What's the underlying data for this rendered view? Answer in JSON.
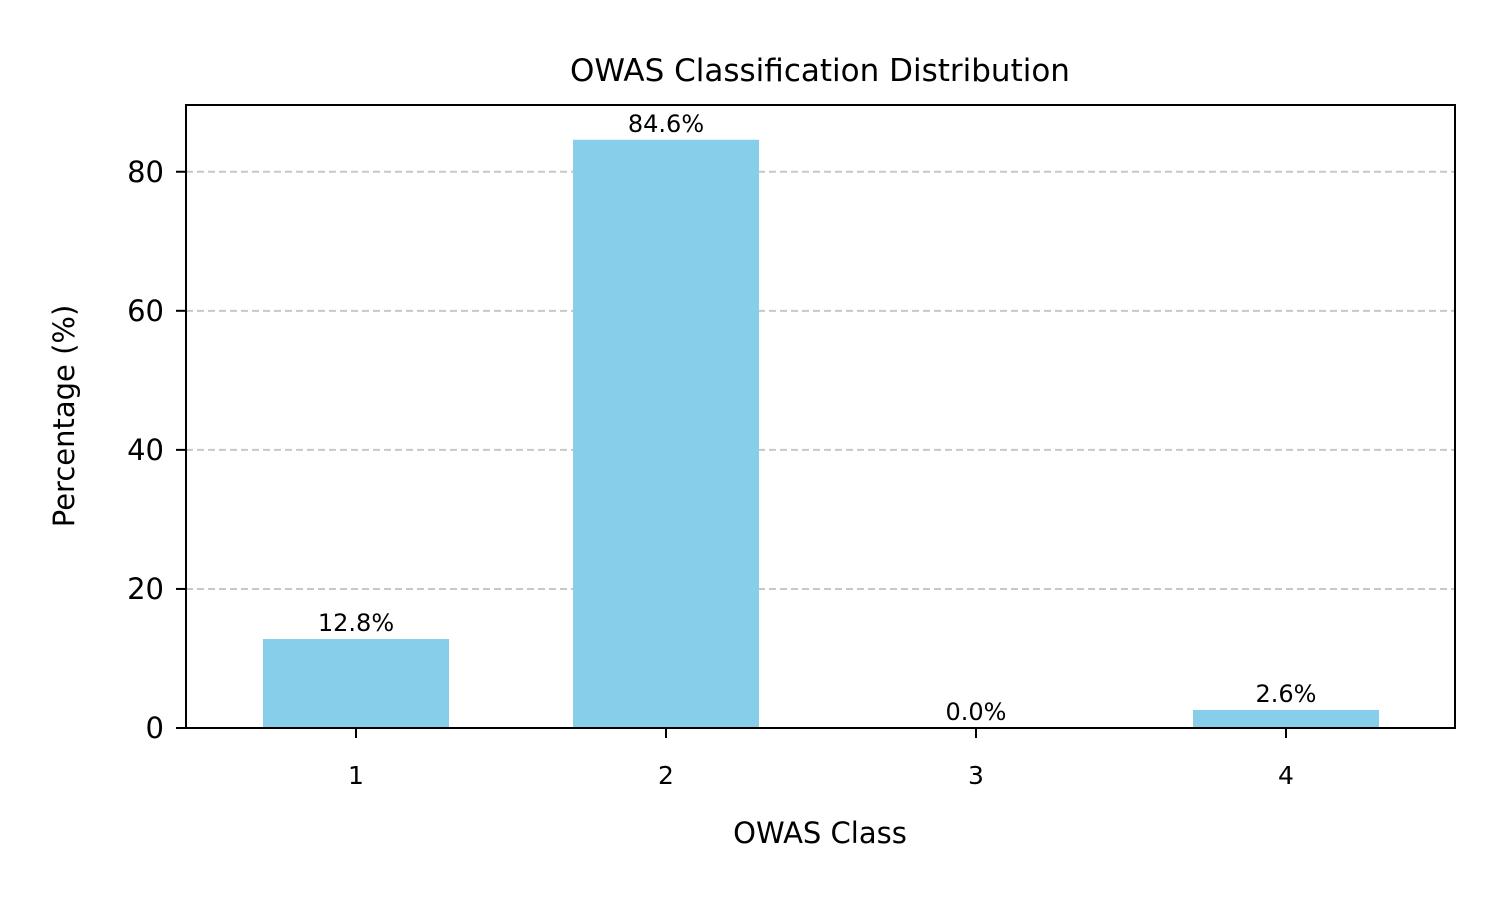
{
  "chart_data": {
    "type": "bar",
    "title": "OWAS Classification Distribution",
    "xlabel": "OWAS Class",
    "ylabel": "Percentage (%)",
    "categories": [
      "1",
      "2",
      "3",
      "4"
    ],
    "values": [
      12.8,
      84.6,
      0.0,
      2.6
    ],
    "value_labels": [
      "12.8%",
      "84.6%",
      "0.0%",
      "2.6%"
    ],
    "ylim": [
      0,
      89.6
    ],
    "yticks": [
      0,
      20,
      40,
      60,
      80
    ],
    "ytick_labels": [
      "0",
      "20",
      "40",
      "60",
      "80"
    ],
    "grid": "y-dashed",
    "legend": "none",
    "colors": {
      "bar": "#87CEEB",
      "grid": "#c8c8c8",
      "axis": "#000000"
    }
  }
}
